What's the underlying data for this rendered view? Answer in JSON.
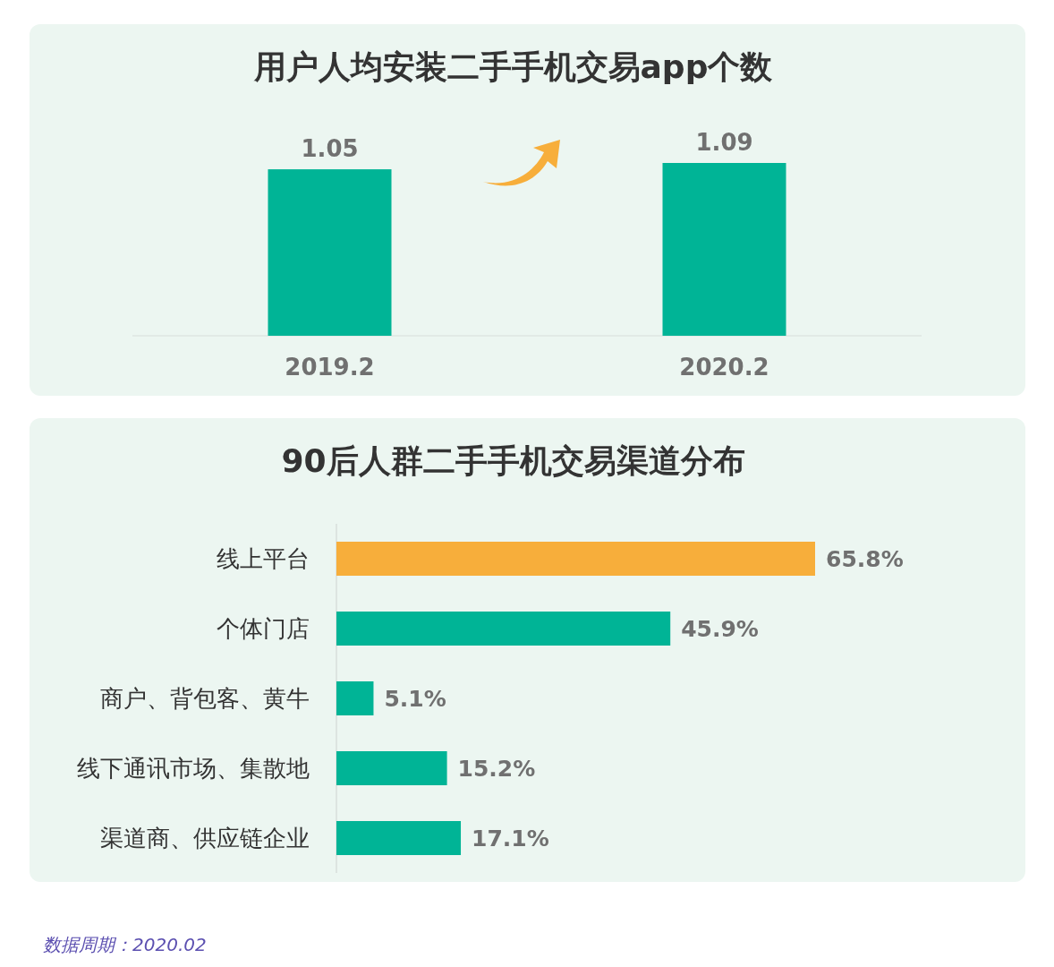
{
  "chart_data": [
    {
      "type": "bar",
      "title": "用户人均安装二手手机交易app个数",
      "categories": [
        "2019.2",
        "2020.2"
      ],
      "values": [
        1.05,
        1.09
      ],
      "color": "#00b496",
      "data_labels": true,
      "tick_labels": "x"
    },
    {
      "type": "bar",
      "orientation": "horizontal",
      "title": "90后人群二手手机交易渠道分布",
      "categories": [
        "线上平台",
        "个体门店",
        "商户、背包客、黄牛",
        "线下通讯市场、集散地",
        "渠道商、供应链企业"
      ],
      "values": [
        65.8,
        45.9,
        5.1,
        15.2,
        17.1
      ],
      "colors": [
        "#f7ae3b",
        "#00b496",
        "#00b496",
        "#00b496",
        "#00b496"
      ],
      "value_labels": [
        "65.8%",
        "45.9%",
        "5.1%",
        "15.2%",
        "17.1%"
      ],
      "tick_labels": "y",
      "annotations": [
        "数据周期：2020.02"
      ]
    }
  ]
}
